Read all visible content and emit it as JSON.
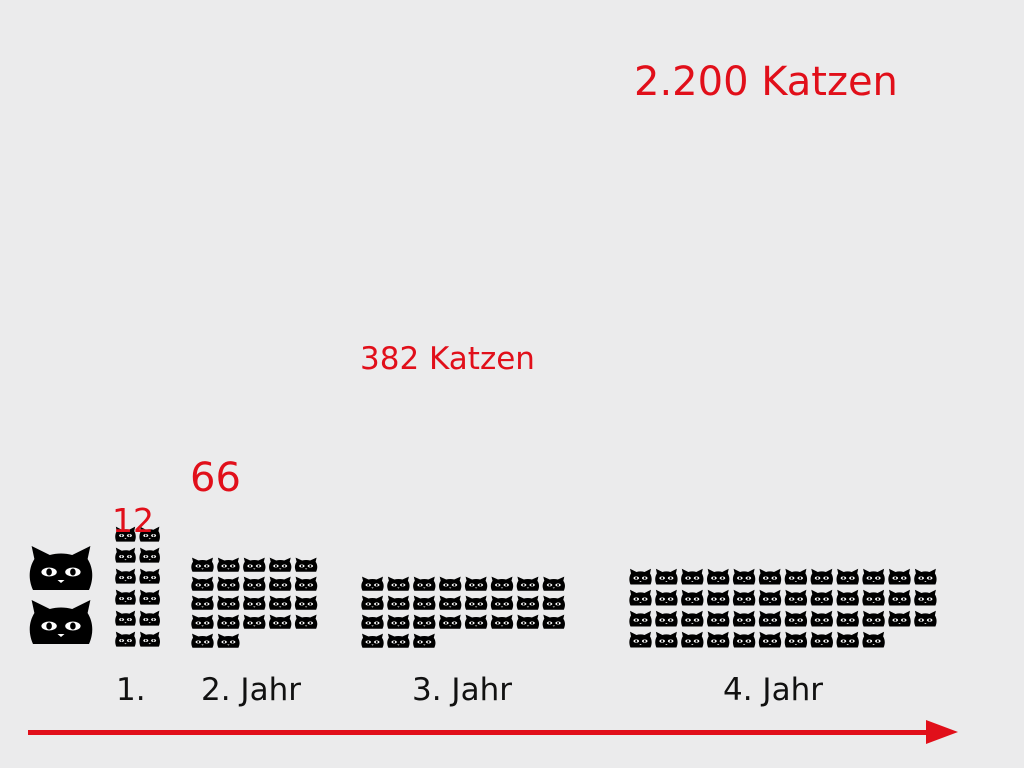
{
  "chart_data": {
    "type": "pictogram",
    "unit_icon": "cat-face-icon",
    "categories": [
      "",
      "1.",
      "2. Jahr",
      "3. Jahr",
      "4. Jahr"
    ],
    "values": [
      2,
      12,
      66,
      382,
      2200
    ],
    "value_labels": [
      "",
      "12",
      "66",
      "382 Katzen",
      "2.200 Katzen"
    ],
    "colors": {
      "value_label": "#e10f1a",
      "icon": "#000000",
      "arrow": "#e10f1a",
      "background": "#ebebec"
    }
  }
}
